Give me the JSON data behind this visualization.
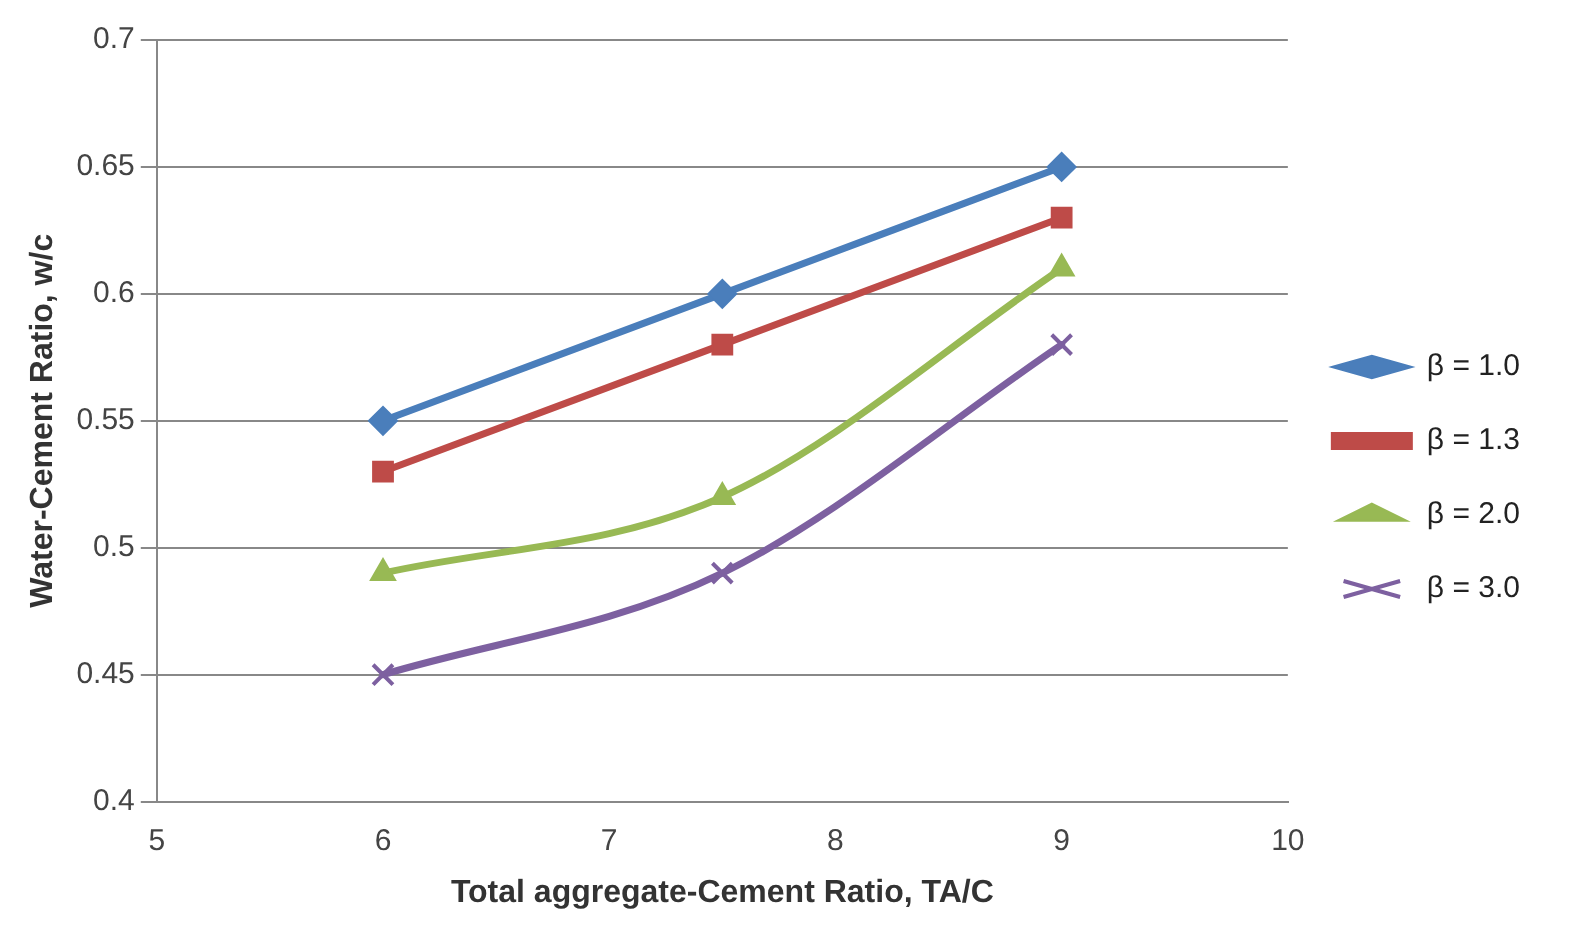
{
  "chart_data": {
    "type": "line",
    "xlabel": "Total aggregate-Cement Ratio, TA/C",
    "ylabel": "Water-Cement Ratio, w/c",
    "x": [
      6,
      7.5,
      9
    ],
    "series": [
      {
        "name": "β = 1.0",
        "color": "#4a7ebb",
        "values": [
          0.55,
          0.6,
          0.65
        ],
        "marker": "diamond"
      },
      {
        "name": "β = 1.3",
        "color": "#be4b48",
        "values": [
          0.53,
          0.58,
          0.63
        ],
        "marker": "square"
      },
      {
        "name": "β = 2.0",
        "color": "#98b954",
        "values": [
          0.49,
          0.52,
          0.61
        ],
        "marker": "triangle"
      },
      {
        "name": "β = 3.0",
        "color": "#7d60a0",
        "values": [
          0.45,
          0.49,
          0.58
        ],
        "marker": "cross"
      }
    ],
    "xlim": [
      5,
      10
    ],
    "xticks": [
      5,
      6,
      7,
      8,
      9,
      10
    ],
    "ylim": [
      0.4,
      0.7
    ],
    "yticks": [
      0.4,
      0.45,
      0.5,
      0.55,
      0.6,
      0.65,
      0.7
    ],
    "grid": "y",
    "legend": "right",
    "line_style": "solid"
  }
}
